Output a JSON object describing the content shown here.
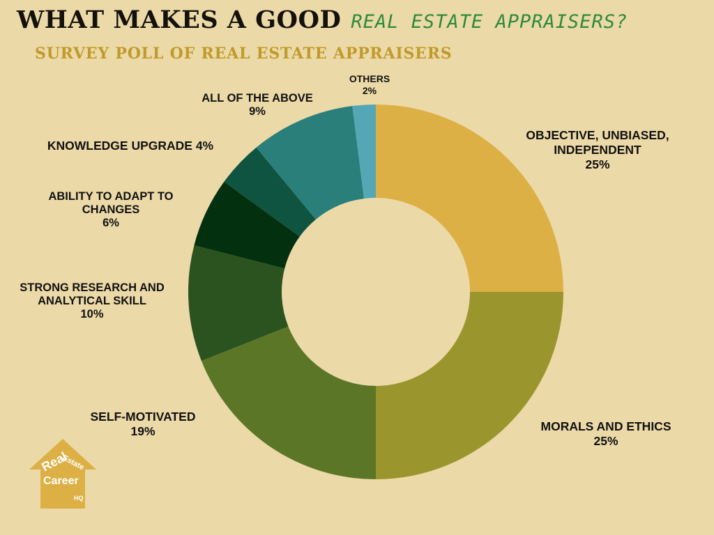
{
  "header": {
    "title": "WHAT MAKES A GOOD",
    "title_accent": "REAL ESTATE APPRAISERS?",
    "subtitle": "SURVEY POLL OF REAL ESTATE APPRAISERS"
  },
  "colors": {
    "background": "#ecd9a8",
    "title": "#14110c",
    "accent": "#2d8a3a",
    "subtitle": "#c09a2a"
  },
  "chart_data": {
    "type": "pie",
    "donut": true,
    "title": "WHAT MAKES A GOOD REAL ESTATE APPRAISERS?",
    "subtitle": "SURVEY POLL OF REAL ESTATE APPRAISERS",
    "categories": [
      "OBJECTIVE, UNBIASED, INDEPENDENT",
      "MORALS AND ETHICS",
      "SELF-MOTIVATED",
      "STRONG RESEARCH AND ANALYTICAL SKILL",
      "ABILITY TO ADAPT TO CHANGES",
      "KNOWLEDGE UPGRADE",
      "ALL OF THE ABOVE",
      "OTHERS"
    ],
    "values": [
      25,
      25,
      19,
      10,
      6,
      4,
      9,
      2
    ],
    "colors": [
      "#dcb045",
      "#9a952d",
      "#5b7626",
      "#2b5320",
      "#03300f",
      "#0e5440",
      "#2b7f7a",
      "#56a7b5"
    ],
    "legend": "none",
    "labels": [
      {
        "lines": [
          "OBJECTIVE, UNBIASED,",
          "INDEPENDENT"
        ],
        "pct": "25%"
      },
      {
        "lines": [
          "MORALS AND ETHICS"
        ],
        "pct": "25%"
      },
      {
        "lines": [
          "SELF-MOTIVATED"
        ],
        "pct": "19%"
      },
      {
        "lines": [
          "STRONG RESEARCH AND",
          "ANALYTICAL SKILL"
        ],
        "pct": "10%"
      },
      {
        "lines": [
          "ABILITY TO ADAPT TO",
          "CHANGES"
        ],
        "pct": "6%"
      },
      {
        "lines": [
          "KNOWLEDGE UPGRADE 4%"
        ],
        "pct": ""
      },
      {
        "lines": [
          "ALL OF THE ABOVE"
        ],
        "pct": "9%"
      },
      {
        "lines": [
          "OTHERS"
        ],
        "pct": "2%"
      }
    ]
  },
  "logo": {
    "line1": "Real",
    "line2": "Estate",
    "line3": "Career",
    "line4": "HQ",
    "color": "#dcb045"
  }
}
